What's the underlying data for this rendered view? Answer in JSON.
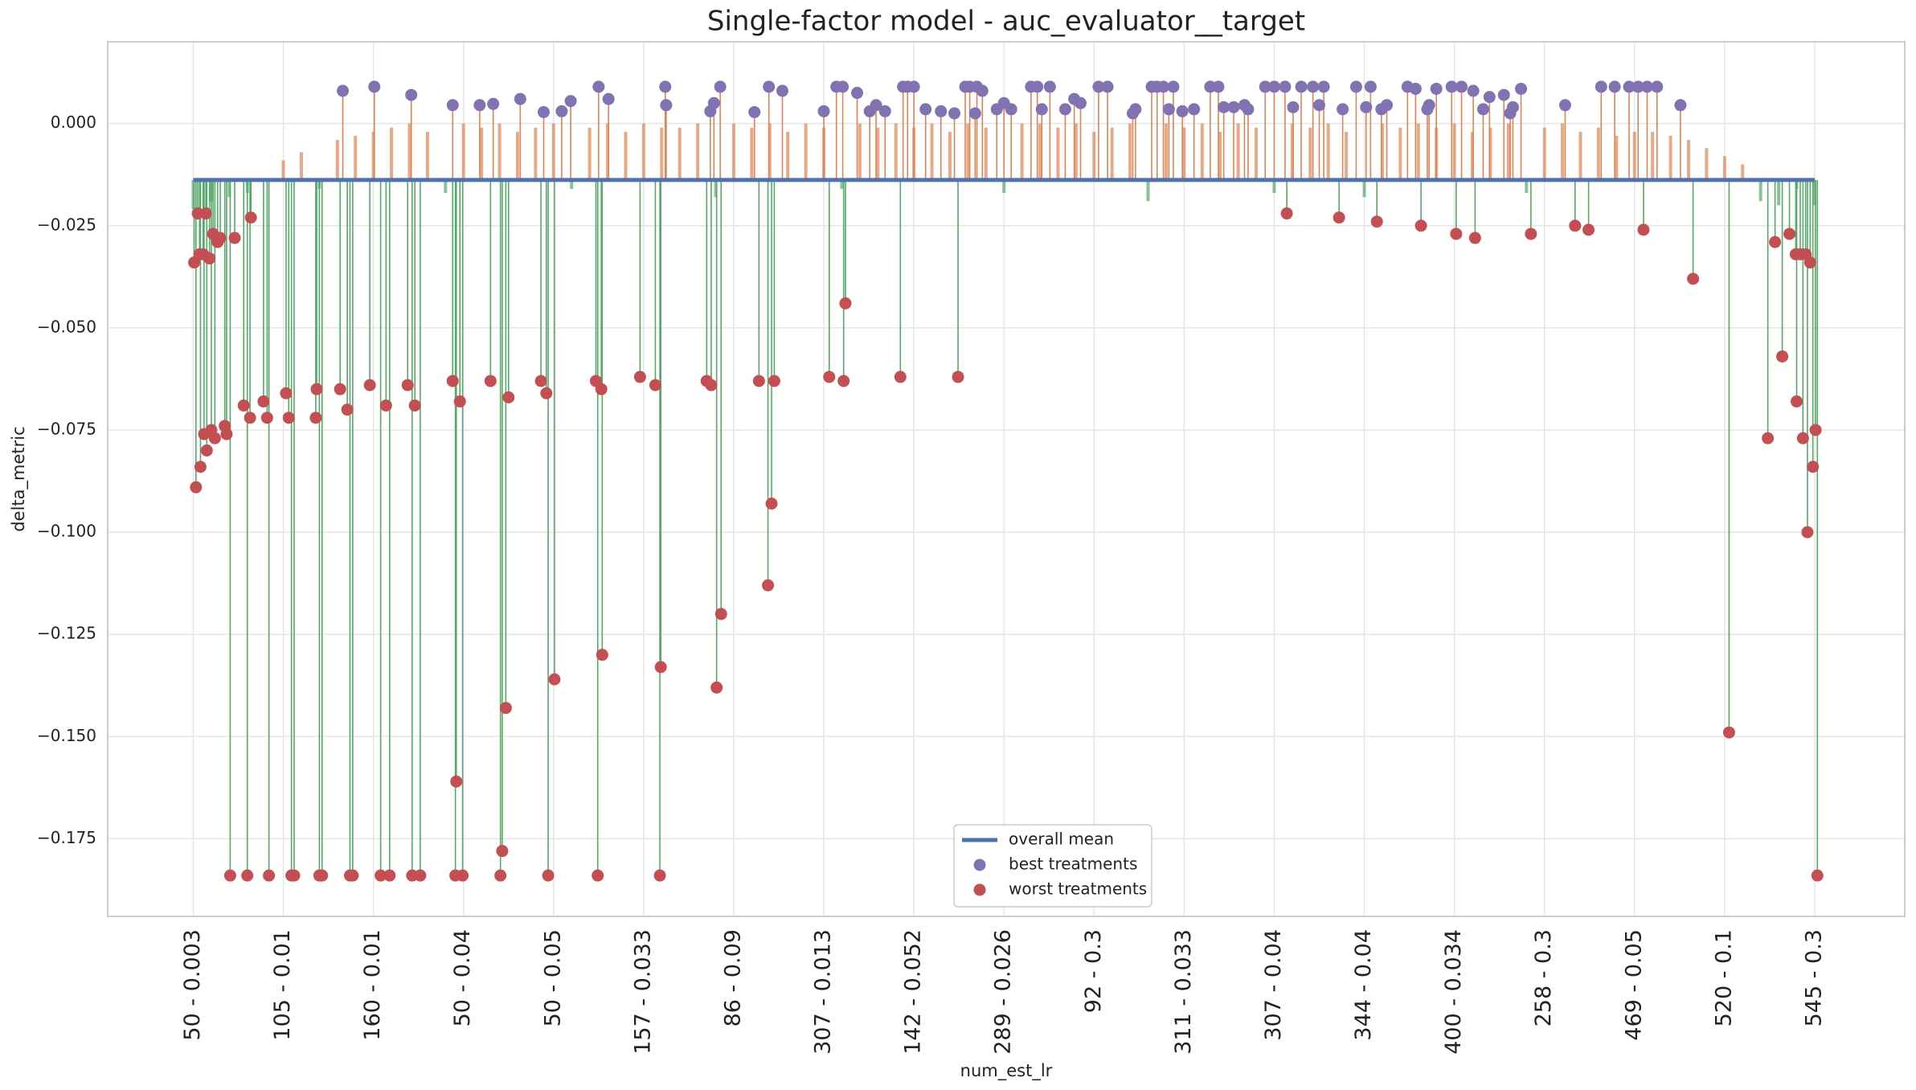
{
  "chart_data": {
    "type": "stem",
    "title": "Single-factor model - auc_evaluator__target",
    "x_label": "num_est_lr",
    "y_label": "delta_metric",
    "xlim": [
      -9.5,
      190
    ],
    "ylim": [
      -0.194,
      0.02
    ],
    "xticks": [
      {
        "value": 0,
        "label": "50 - 0.003"
      },
      {
        "value": 10,
        "label": "105 - 0.01"
      },
      {
        "value": 20,
        "label": "160 - 0.01"
      },
      {
        "value": 30,
        "label": "50 - 0.04"
      },
      {
        "value": 40,
        "label": "50 - 0.05"
      },
      {
        "value": 50,
        "label": "157 - 0.033"
      },
      {
        "value": 60,
        "label": "86 - 0.09"
      },
      {
        "value": 70,
        "label": "307 - 0.013"
      },
      {
        "value": 80,
        "label": "142 - 0.052"
      },
      {
        "value": 90,
        "label": "289 - 0.026"
      },
      {
        "value": 100,
        "label": "92 - 0.3"
      },
      {
        "value": 110,
        "label": "311 - 0.033"
      },
      {
        "value": 120,
        "label": "307 - 0.04"
      },
      {
        "value": 130,
        "label": "344 - 0.04"
      },
      {
        "value": 140,
        "label": "400 - 0.034"
      },
      {
        "value": 150,
        "label": "258 - 0.3"
      },
      {
        "value": 160,
        "label": "469 - 0.05"
      },
      {
        "value": 170,
        "label": "520 - 0.1"
      },
      {
        "value": 180,
        "label": "545 - 0.3"
      }
    ],
    "yticks": [
      {
        "value": 0,
        "label": "0.000"
      },
      {
        "value": -0.025,
        "label": "−0.025"
      },
      {
        "value": -0.05,
        "label": "−0.050"
      },
      {
        "value": -0.075,
        "label": "−0.075"
      },
      {
        "value": -0.1,
        "label": "−0.100"
      },
      {
        "value": -0.125,
        "label": "−0.125"
      },
      {
        "value": -0.15,
        "label": "−0.150"
      },
      {
        "value": -0.175,
        "label": "−0.175"
      }
    ],
    "grid": true,
    "legend": "lower center",
    "mean": {
      "name": "overall mean",
      "value": -0.0138,
      "color": "#4c72b0"
    },
    "colors": {
      "above": "#dd8452",
      "below": "#55a868"
    },
    "bars": {
      "x": [
        0,
        2,
        4,
        6,
        8,
        10,
        12,
        14,
        16,
        18,
        20,
        22,
        24,
        26,
        28,
        30,
        32,
        34,
        36,
        38,
        40,
        42,
        44,
        46,
        48,
        50,
        52,
        54,
        56,
        58,
        60,
        62,
        64,
        66,
        68,
        70,
        72,
        74,
        76,
        78,
        80,
        82,
        84,
        86,
        88,
        90,
        92,
        94,
        96,
        98,
        100,
        102,
        104,
        106,
        108,
        110,
        112,
        114,
        116,
        118,
        120,
        122,
        124,
        126,
        128,
        130,
        132,
        134,
        136,
        138,
        140,
        142,
        144,
        146,
        148,
        150,
        152,
        154,
        156,
        158,
        160,
        162,
        164,
        166,
        168,
        170,
        172,
        174,
        176,
        178,
        180
      ],
      "values": [
        -0.021,
        -0.019,
        -0.018,
        -0.017,
        -0.014,
        -0.009,
        -0.007,
        -0.016,
        -0.004,
        -0.003,
        -0.002,
        -0.001,
        0,
        -0.002,
        -0.017,
        0,
        -0.001,
        0,
        -0.002,
        -0.001,
        0,
        -0.016,
        -0.001,
        0,
        -0.002,
        0,
        -0.001,
        -0.001,
        0,
        -0.018,
        0,
        -0.001,
        0,
        -0.002,
        0,
        -0.001,
        -0.016,
        0,
        -0.001,
        0,
        -0.001,
        0,
        -0.002,
        0,
        -0.001,
        -0.017,
        0,
        0,
        -0.001,
        0,
        -0.002,
        -0.001,
        0,
        -0.019,
        0,
        -0.001,
        0,
        -0.002,
        0,
        -0.001,
        -0.017,
        0,
        -0.001,
        0,
        -0.002,
        -0.018,
        0,
        -0.001,
        0,
        -0.001,
        0,
        -0.002,
        -0.001,
        0,
        -0.017,
        -0.001,
        0,
        -0.002,
        -0.001,
        -0.003,
        -0.002,
        -0.002,
        -0.003,
        -0.004,
        -0.006,
        -0.008,
        -0.01,
        -0.019,
        -0.02,
        -0.016,
        -0.02
      ]
    },
    "series": [
      {
        "name": "best treatments",
        "color": "#8172b3",
        "x": [
          16.6,
          20.1,
          24.2,
          28.8,
          31.8,
          33.3,
          36.3,
          38.9,
          40.9,
          41.9,
          45.0,
          46.1,
          52.4,
          52.5,
          57.4,
          57.8,
          58.5,
          62.3,
          63.9,
          65.4,
          70.0,
          71.4,
          72.1,
          73.7,
          75.1,
          75.8,
          76.8,
          78.8,
          79.3,
          80.0,
          81.3,
          83.0,
          84.5,
          85.7,
          86.2,
          86.8,
          87.0,
          87.6,
          89.2,
          90.0,
          90.8,
          93.0,
          93.7,
          94.2,
          95.1,
          96.8,
          97.8,
          98.5,
          100.5,
          101.5,
          104.3,
          104.6,
          106.4,
          107.0,
          107.7,
          108.3,
          108.8,
          109.8,
          111.1,
          112.9,
          113.8,
          114.4,
          115.5,
          116.7,
          117.1,
          119.0,
          120.0,
          121.2,
          122.1,
          123.0,
          124.3,
          125.0,
          125.5,
          127.6,
          129.1,
          130.2,
          130.7,
          131.9,
          132.5,
          134.8,
          135.7,
          137.0,
          137.2,
          138.0,
          139.7,
          140.8,
          142.1,
          143.2,
          143.9,
          145.5,
          146.2,
          146.5,
          147.4,
          152.3,
          156.3,
          157.8,
          159.4,
          160.4,
          161.4,
          162.5,
          165.1
        ],
        "values": [
          0.008,
          0.009,
          0.007,
          0.0045,
          0.0045,
          0.0048,
          0.006,
          0.0028,
          0.003,
          0.0055,
          0.009,
          0.006,
          0.009,
          0.0045,
          0.003,
          0.005,
          0.009,
          0.0028,
          0.009,
          0.008,
          0.003,
          0.009,
          0.009,
          0.0075,
          0.003,
          0.0045,
          0.003,
          0.009,
          0.009,
          0.009,
          0.0035,
          0.003,
          0.0025,
          0.009,
          0.009,
          0.0025,
          0.009,
          0.008,
          0.0035,
          0.005,
          0.0035,
          0.009,
          0.009,
          0.0035,
          0.009,
          0.0035,
          0.006,
          0.005,
          0.009,
          0.009,
          0.0025,
          0.0035,
          0.009,
          0.009,
          0.009,
          0.0035,
          0.009,
          0.003,
          0.0035,
          0.009,
          0.009,
          0.004,
          0.004,
          0.0045,
          0.0035,
          0.009,
          0.009,
          0.009,
          0.004,
          0.009,
          0.009,
          0.0045,
          0.009,
          0.0035,
          0.009,
          0.004,
          0.009,
          0.0035,
          0.0045,
          0.009,
          0.0085,
          0.0035,
          0.0045,
          0.0085,
          0.009,
          0.009,
          0.008,
          0.0035,
          0.0065,
          0.007,
          0.0025,
          0.004,
          0.0085,
          0.0045,
          0.009,
          0.009,
          0.009,
          0.009,
          0.009,
          0.009,
          0.0045
        ]
      },
      {
        "name": "worst treatments",
        "color": "#c44e52",
        "x": [
          0.1,
          0.3,
          0.5,
          0.7,
          0.8,
          1.1,
          1.2,
          1.4,
          1.5,
          1.8,
          2.0,
          2.2,
          2.4,
          2.7,
          3.0,
          3.5,
          3.7,
          4.1,
          4.6,
          5.6,
          6.0,
          6.3,
          6.4,
          7.8,
          8.2,
          8.4,
          10.3,
          10.6,
          10.9,
          11.2,
          13.6,
          13.7,
          14.0,
          14.3,
          16.3,
          17.1,
          17.4,
          17.7,
          19.6,
          20.8,
          21.4,
          21.8,
          23.8,
          24.3,
          24.6,
          25.2,
          28.8,
          29.1,
          29.2,
          29.6,
          29.9,
          33.0,
          34.1,
          34.3,
          34.7,
          35.0,
          38.6,
          39.2,
          39.4,
          40.1,
          44.7,
          44.9,
          45.3,
          45.4,
          49.6,
          51.3,
          51.8,
          51.9,
          57.0,
          57.5,
          58.1,
          58.6,
          62.8,
          63.8,
          64.2,
          64.5,
          70.6,
          72.2,
          72.4,
          78.5,
          84.9,
          121.4,
          127.2,
          131.4,
          136.3,
          140.2,
          142.3,
          148.5,
          153.4,
          154.9,
          161.0,
          166.5,
          170.5,
          174.8,
          175.6,
          176.4,
          177.2,
          177.9,
          178.0,
          178.4,
          178.7,
          179.0,
          179.2,
          179.5,
          179.8,
          180.1,
          180.3
        ],
        "values": [
          -0.034,
          -0.089,
          -0.022,
          -0.032,
          -0.084,
          -0.032,
          -0.076,
          -0.022,
          -0.08,
          -0.033,
          -0.075,
          -0.027,
          -0.077,
          -0.029,
          -0.028,
          -0.074,
          -0.076,
          -0.184,
          -0.028,
          -0.069,
          -0.184,
          -0.072,
          -0.023,
          -0.068,
          -0.072,
          -0.184,
          -0.066,
          -0.072,
          -0.184,
          -0.184,
          -0.072,
          -0.065,
          -0.184,
          -0.184,
          -0.065,
          -0.07,
          -0.184,
          -0.184,
          -0.064,
          -0.184,
          -0.069,
          -0.184,
          -0.064,
          -0.184,
          -0.069,
          -0.184,
          -0.063,
          -0.184,
          -0.161,
          -0.068,
          -0.184,
          -0.063,
          -0.184,
          -0.178,
          -0.143,
          -0.067,
          -0.063,
          -0.066,
          -0.184,
          -0.136,
          -0.063,
          -0.184,
          -0.065,
          -0.13,
          -0.062,
          -0.064,
          -0.184,
          -0.133,
          -0.063,
          -0.064,
          -0.138,
          -0.12,
          -0.063,
          -0.113,
          -0.093,
          -0.063,
          -0.062,
          -0.063,
          -0.044,
          -0.062,
          -0.062,
          -0.022,
          -0.023,
          -0.024,
          -0.025,
          -0.027,
          -0.028,
          -0.027,
          -0.025,
          -0.026,
          -0.026,
          -0.038,
          -0.149,
          -0.077,
          -0.029,
          -0.057,
          -0.027,
          -0.032,
          -0.068,
          -0.032,
          -0.077,
          -0.032,
          -0.1,
          -0.034,
          -0.084,
          -0.075,
          -0.184
        ]
      }
    ]
  }
}
